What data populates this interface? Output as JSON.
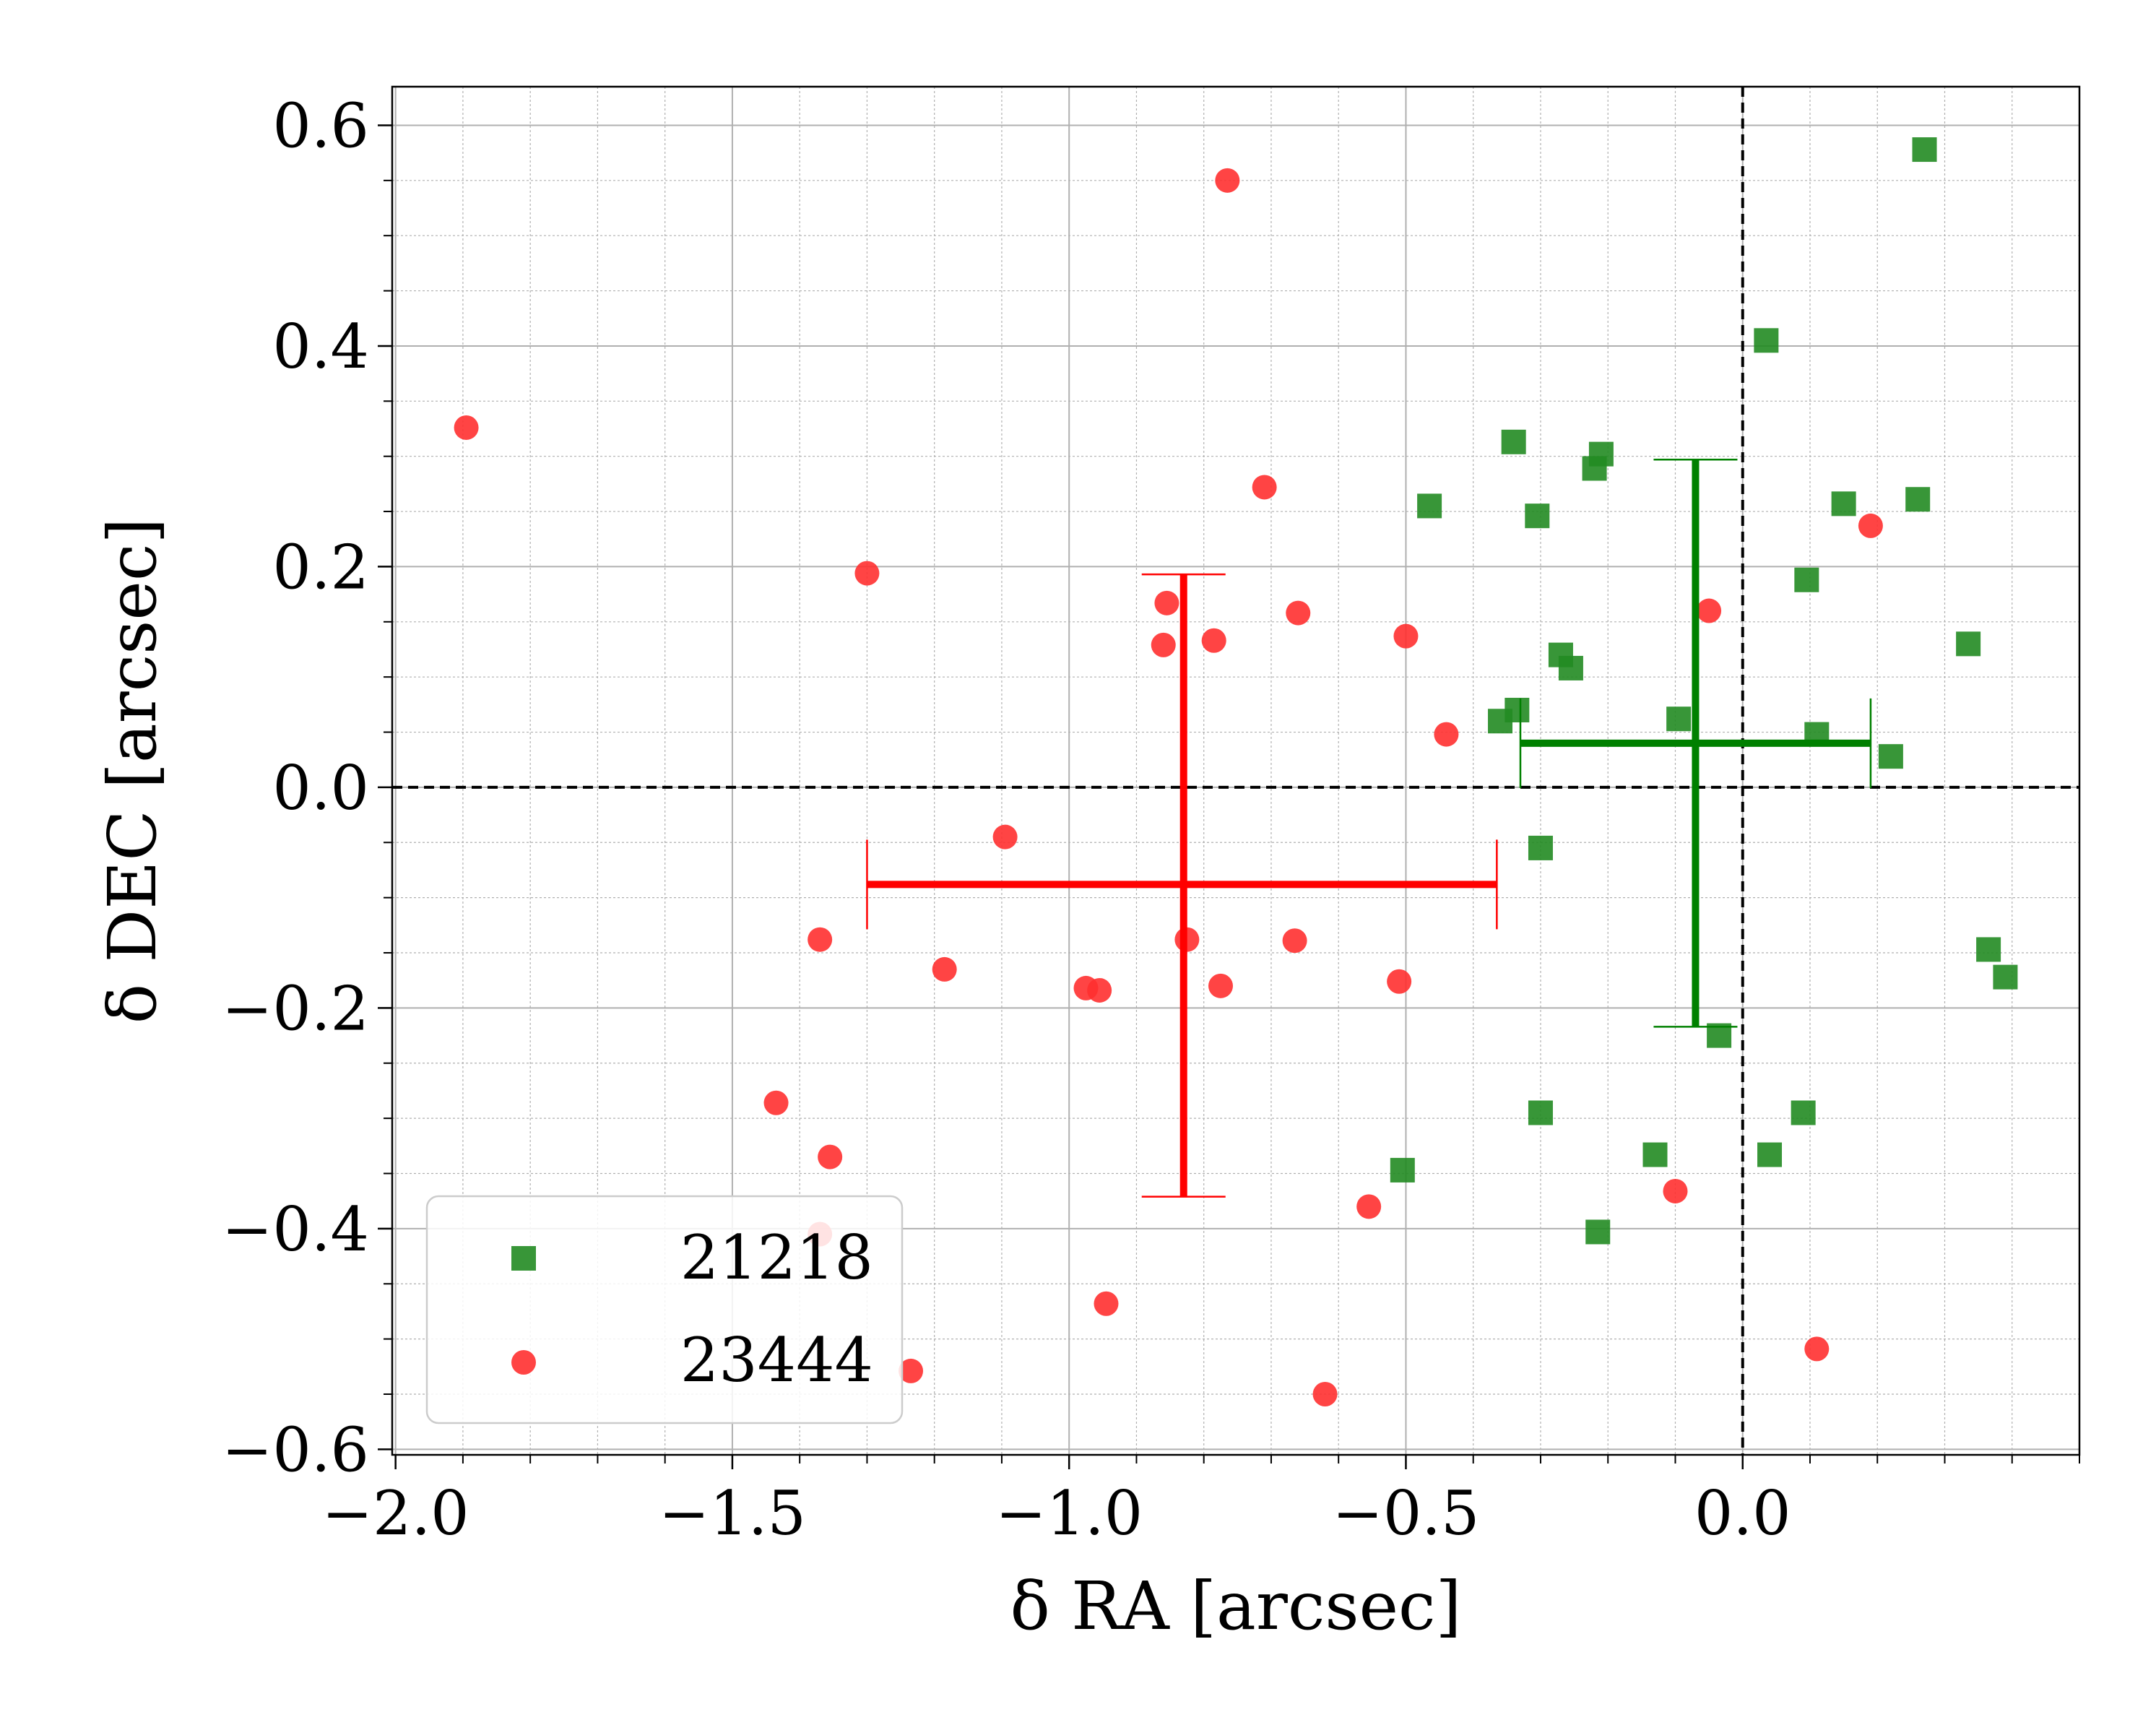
{
  "chart_data": {
    "type": "scatter",
    "title": "",
    "xlabel": "δ RA [arcsec]",
    "ylabel": "δ DEC [arcsec]",
    "xlim": [
      -2.005,
      0.5
    ],
    "ylim": [
      -0.605,
      0.635
    ],
    "xticks": [
      -2.0,
      -1.5,
      -1.0,
      -0.5,
      0.0
    ],
    "xtick_labels": [
      "−2.0",
      "−1.5",
      "−1.0",
      "−0.5",
      "0.0"
    ],
    "yticks": [
      -0.6,
      -0.4,
      -0.2,
      0.0,
      0.2,
      0.4,
      0.6
    ],
    "ytick_labels": [
      "−0.6",
      "−0.4",
      "−0.2",
      "0.0",
      "0.2",
      "0.4",
      "0.6"
    ],
    "x_minor_step": 0.1,
    "y_minor_step": 0.05,
    "grid": true,
    "reference_lines": {
      "x": 0.0,
      "y": 0.0,
      "style": "dashed",
      "color": "#000000"
    },
    "legend": {
      "placement": "lower-left"
    },
    "series": [
      {
        "name": "21218",
        "marker": "square",
        "color": "#228B22",
        "errorbar_color": "#008000",
        "points": [
          [
            0.27,
            0.578
          ],
          [
            0.035,
            0.405
          ],
          [
            -0.34,
            0.313
          ],
          [
            -0.21,
            0.302
          ],
          [
            -0.22,
            0.289
          ],
          [
            -0.465,
            0.255
          ],
          [
            -0.305,
            0.246
          ],
          [
            0.15,
            0.257
          ],
          [
            0.26,
            0.261
          ],
          [
            0.095,
            0.188
          ],
          [
            0.335,
            0.13
          ],
          [
            -0.27,
            0.12
          ],
          [
            -0.255,
            0.108
          ],
          [
            -0.335,
            0.07
          ],
          [
            -0.36,
            0.06
          ],
          [
            -0.095,
            0.062
          ],
          [
            0.11,
            0.048
          ],
          [
            0.22,
            0.028
          ],
          [
            -0.3,
            -0.055
          ],
          [
            0.365,
            -0.147
          ],
          [
            0.39,
            -0.172
          ],
          [
            -0.035,
            -0.225
          ],
          [
            -0.3,
            -0.295
          ],
          [
            0.09,
            -0.295
          ],
          [
            -0.13,
            -0.333
          ],
          [
            0.04,
            -0.333
          ],
          [
            -0.505,
            -0.347
          ],
          [
            -0.215,
            -0.403
          ]
        ],
        "mean": {
          "x": -0.07,
          "y": 0.04,
          "x_range": [
            -0.33,
            0.19
          ],
          "y_range": [
            -0.217,
            0.297
          ]
        }
      },
      {
        "name": "23444",
        "marker": "circle",
        "color": "#FF3030",
        "errorbar_color": "#FF0000",
        "points": [
          [
            -0.765,
            0.55
          ],
          [
            -1.895,
            0.326
          ],
          [
            -0.71,
            0.272
          ],
          [
            -1.3,
            0.194
          ],
          [
            -0.855,
            0.167
          ],
          [
            -0.66,
            0.158
          ],
          [
            -0.86,
            0.129
          ],
          [
            -0.785,
            0.133
          ],
          [
            -0.5,
            0.137
          ],
          [
            -0.05,
            0.16
          ],
          [
            0.19,
            0.237
          ],
          [
            -0.44,
            0.048
          ],
          [
            -1.095,
            -0.045
          ],
          [
            -1.37,
            -0.138
          ],
          [
            -1.185,
            -0.165
          ],
          [
            -0.825,
            -0.138
          ],
          [
            -0.665,
            -0.139
          ],
          [
            -0.975,
            -0.182
          ],
          [
            -0.955,
            -0.184
          ],
          [
            -0.775,
            -0.18
          ],
          [
            -0.51,
            -0.176
          ],
          [
            -1.435,
            -0.286
          ],
          [
            -1.355,
            -0.335
          ],
          [
            -1.37,
            -0.405
          ],
          [
            -0.1,
            -0.366
          ],
          [
            -0.555,
            -0.38
          ],
          [
            -0.945,
            -0.468
          ],
          [
            0.11,
            -0.509
          ],
          [
            -1.235,
            -0.529
          ],
          [
            -0.62,
            -0.55
          ]
        ],
        "mean": {
          "x": -0.83,
          "y": -0.088,
          "x_range": [
            -1.3,
            -0.365
          ],
          "y_range": [
            -0.371,
            0.193
          ]
        }
      }
    ]
  }
}
